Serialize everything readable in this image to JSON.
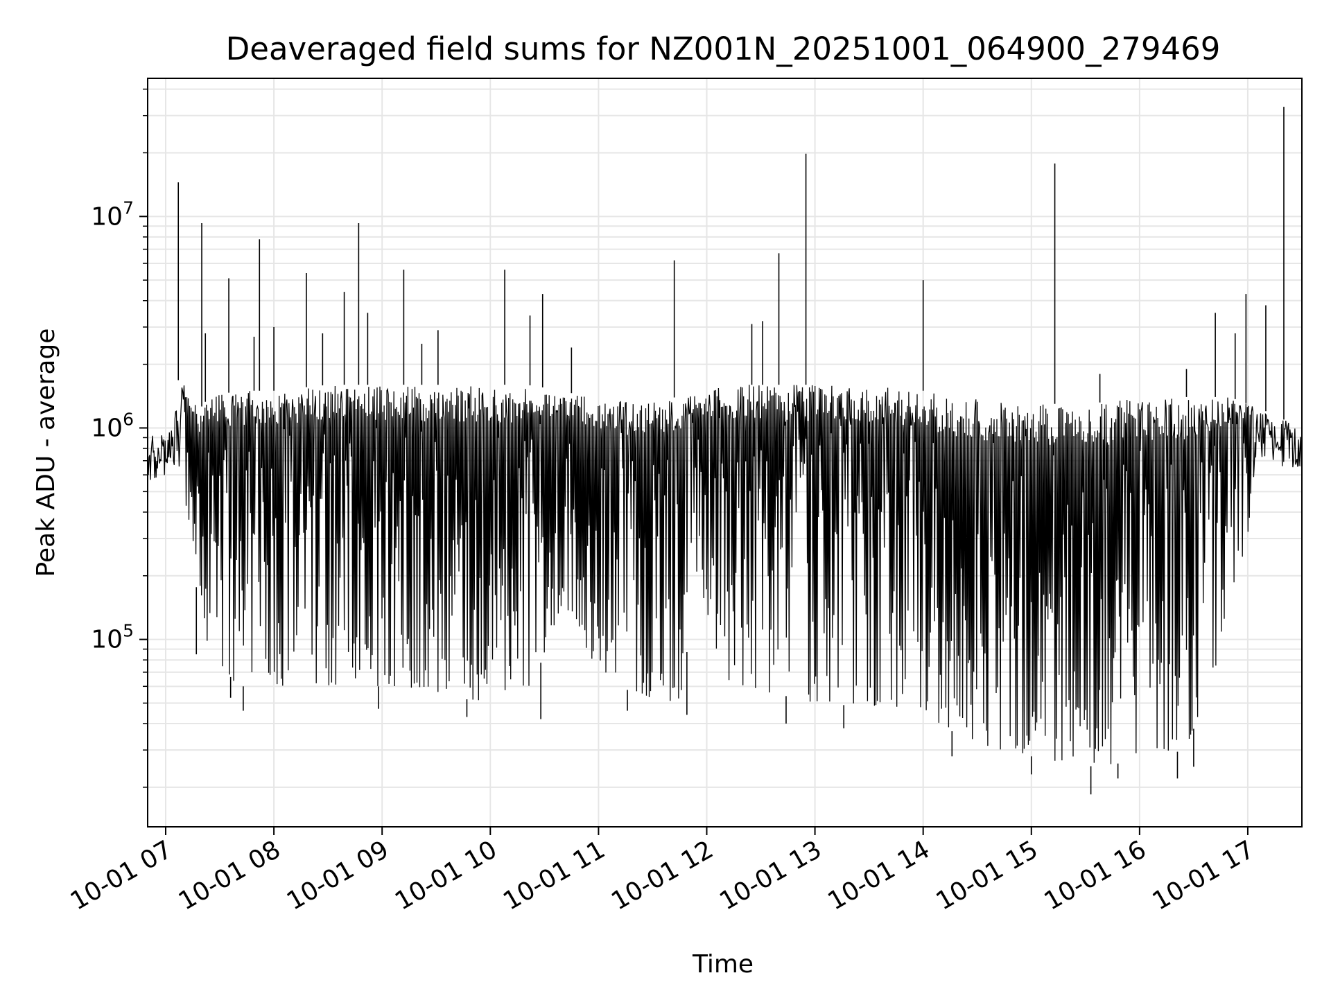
{
  "chart_data": {
    "type": "line",
    "title": "Deaveraged field sums for NZ001N_20251001_064900_279469",
    "xlabel": "Time",
    "ylabel": "Peak ADU - average",
    "yscale": "log",
    "grid": true,
    "grid_minor": true,
    "legend": "none",
    "line_color": "#000000",
    "xlim": [
      "2025-10-01 06:50",
      "2025-10-01 17:30"
    ],
    "ylim": [
      13000,
      45000000
    ],
    "x_ticks": [
      "10-01 07",
      "10-01 08",
      "10-01 09",
      "10-01 10",
      "10-01 11",
      "10-01 12",
      "10-01 13",
      "10-01 14",
      "10-01 15",
      "10-01 16",
      "10-01 17"
    ],
    "y_ticks": [
      {
        "value": 100000,
        "base": "10",
        "exp": "5"
      },
      {
        "value": 1000000,
        "base": "10",
        "exp": "6"
      },
      {
        "value": 10000000,
        "base": "10",
        "exp": "7"
      }
    ],
    "baseline_envelope": [
      {
        "x": "2025-10-01 06:50",
        "lower": 550000,
        "upper": 900000
      },
      {
        "x": "2025-10-01 07:02",
        "lower": 600000,
        "upper": 1000000
      },
      {
        "x": "2025-10-01 07:06",
        "lower": 700000,
        "upper": 1700000
      },
      {
        "x": "2025-10-01 07:12",
        "lower": 400000,
        "upper": 1600000
      },
      {
        "x": "2025-10-01 07:18",
        "lower": 150000,
        "upper": 1200000
      },
      {
        "x": "2025-10-01 07:24",
        "lower": 90000,
        "upper": 1400000
      },
      {
        "x": "2025-10-01 07:40",
        "lower": 60000,
        "upper": 1500000
      },
      {
        "x": "2025-10-01 08:00",
        "lower": 60000,
        "upper": 1500000
      },
      {
        "x": "2025-10-01 08:30",
        "lower": 60000,
        "upper": 1600000
      },
      {
        "x": "2025-10-01 09:00",
        "lower": 60000,
        "upper": 1600000
      },
      {
        "x": "2025-10-01 09:30",
        "lower": 55000,
        "upper": 1600000
      },
      {
        "x": "2025-10-01 10:00",
        "lower": 50000,
        "upper": 1600000
      },
      {
        "x": "2025-10-01 10:20",
        "lower": 50000,
        "upper": 1600000
      },
      {
        "x": "2025-10-01 10:40",
        "lower": 150000,
        "upper": 1500000
      },
      {
        "x": "2025-10-01 11:00",
        "lower": 70000,
        "upper": 1350000
      },
      {
        "x": "2025-10-01 11:20",
        "lower": 55000,
        "upper": 1350000
      },
      {
        "x": "2025-10-01 11:45",
        "lower": 50000,
        "upper": 1400000
      },
      {
        "x": "2025-10-01 11:55",
        "lower": 200000,
        "upper": 1500000
      },
      {
        "x": "2025-10-01 12:10",
        "lower": 60000,
        "upper": 1600000
      },
      {
        "x": "2025-10-01 12:40",
        "lower": 55000,
        "upper": 1600000
      },
      {
        "x": "2025-10-01 13:00",
        "lower": 50000,
        "upper": 1600000
      },
      {
        "x": "2025-10-01 13:30",
        "lower": 48000,
        "upper": 1600000
      },
      {
        "x": "2025-10-01 14:00",
        "lower": 45000,
        "upper": 1500000
      },
      {
        "x": "2025-10-01 14:20",
        "lower": 35000,
        "upper": 1400000
      },
      {
        "x": "2025-10-01 14:40",
        "lower": 30000,
        "upper": 1350000
      },
      {
        "x": "2025-10-01 15:00",
        "lower": 28000,
        "upper": 1300000
      },
      {
        "x": "2025-10-01 15:30",
        "lower": 25000,
        "upper": 1300000
      },
      {
        "x": "2025-10-01 15:50",
        "lower": 26000,
        "upper": 1350000
      },
      {
        "x": "2025-10-01 16:10",
        "lower": 28000,
        "upper": 1400000
      },
      {
        "x": "2025-10-01 16:25",
        "lower": 30000,
        "upper": 1400000
      },
      {
        "x": "2025-10-01 16:40",
        "lower": 60000,
        "upper": 1400000
      },
      {
        "x": "2025-10-01 16:50",
        "lower": 150000,
        "upper": 1400000
      },
      {
        "x": "2025-10-01 17:00",
        "lower": 300000,
        "upper": 1300000
      },
      {
        "x": "2025-10-01 17:10",
        "lower": 700000,
        "upper": 1200000
      },
      {
        "x": "2025-10-01 17:30",
        "lower": 600000,
        "upper": 1000000
      }
    ],
    "spikes": [
      {
        "x": "2025-10-01 07:07",
        "value": 14500000
      },
      {
        "x": "2025-10-01 07:20",
        "value": 9300000
      },
      {
        "x": "2025-10-01 07:22",
        "value": 2800000
      },
      {
        "x": "2025-10-01 07:35",
        "value": 5100000
      },
      {
        "x": "2025-10-01 07:49",
        "value": 2700000
      },
      {
        "x": "2025-10-01 07:52",
        "value": 7800000
      },
      {
        "x": "2025-10-01 08:00",
        "value": 3000000
      },
      {
        "x": "2025-10-01 08:18",
        "value": 5400000
      },
      {
        "x": "2025-10-01 08:27",
        "value": 2800000
      },
      {
        "x": "2025-10-01 08:39",
        "value": 4400000
      },
      {
        "x": "2025-10-01 08:47",
        "value": 9300000
      },
      {
        "x": "2025-10-01 08:52",
        "value": 3500000
      },
      {
        "x": "2025-10-01 09:12",
        "value": 5600000
      },
      {
        "x": "2025-10-01 09:22",
        "value": 2500000
      },
      {
        "x": "2025-10-01 09:31",
        "value": 2900000
      },
      {
        "x": "2025-10-01 10:08",
        "value": 5600000
      },
      {
        "x": "2025-10-01 10:22",
        "value": 3400000
      },
      {
        "x": "2025-10-01 10:29",
        "value": 4300000
      },
      {
        "x": "2025-10-01 10:45",
        "value": 2400000
      },
      {
        "x": "2025-10-01 11:42",
        "value": 6200000
      },
      {
        "x": "2025-10-01 12:25",
        "value": 3100000
      },
      {
        "x": "2025-10-01 12:31",
        "value": 3200000
      },
      {
        "x": "2025-10-01 12:40",
        "value": 6700000
      },
      {
        "x": "2025-10-01 12:55",
        "value": 19800000
      },
      {
        "x": "2025-10-01 14:00",
        "value": 5000000
      },
      {
        "x": "2025-10-01 15:13",
        "value": 17800000
      },
      {
        "x": "2025-10-01 15:38",
        "value": 1800000
      },
      {
        "x": "2025-10-01 16:26",
        "value": 1900000
      },
      {
        "x": "2025-10-01 16:42",
        "value": 3500000
      },
      {
        "x": "2025-10-01 16:53",
        "value": 2800000
      },
      {
        "x": "2025-10-01 16:59",
        "value": 4300000
      },
      {
        "x": "2025-10-01 17:10",
        "value": 3800000
      },
      {
        "x": "2025-10-01 17:20",
        "value": 33000000
      }
    ],
    "dips": [
      {
        "x": "2025-10-01 07:17",
        "value": 85000
      },
      {
        "x": "2025-10-01 07:36",
        "value": 53000
      },
      {
        "x": "2025-10-01 07:43",
        "value": 46000
      },
      {
        "x": "2025-10-01 08:58",
        "value": 47000
      },
      {
        "x": "2025-10-01 09:47",
        "value": 43000
      },
      {
        "x": "2025-10-01 10:28",
        "value": 42000
      },
      {
        "x": "2025-10-01 11:16",
        "value": 46000
      },
      {
        "x": "2025-10-01 11:49",
        "value": 44000
      },
      {
        "x": "2025-10-01 12:44",
        "value": 40000
      },
      {
        "x": "2025-10-01 13:16",
        "value": 38000
      },
      {
        "x": "2025-10-01 14:16",
        "value": 28000
      },
      {
        "x": "2025-10-01 15:00",
        "value": 23000
      },
      {
        "x": "2025-10-01 15:33",
        "value": 18500
      },
      {
        "x": "2025-10-01 15:48",
        "value": 22000
      },
      {
        "x": "2025-10-01 16:21",
        "value": 22000
      },
      {
        "x": "2025-10-01 16:30",
        "value": 25000
      }
    ]
  }
}
